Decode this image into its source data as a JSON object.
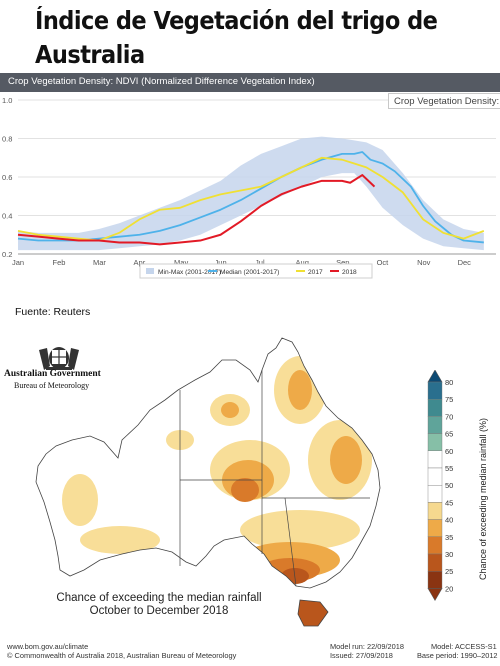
{
  "page": {
    "title": "Índice de Vegetación del trigo de Australia",
    "source_label": "Fuente: Reuters"
  },
  "ndvi_chart": {
    "header": "Crop Vegetation Density: NDVI (Normalized Difference Vegetation Index)",
    "tooltip": "Crop Vegetation Density: N"
  },
  "rain_map": {
    "agency_line1": "Australian Government",
    "agency_line2": "Bureau of Meteorology",
    "map_title_line1": "Chance of exceeding the median rainfall",
    "map_title_line2": "October to December 2018",
    "colorbar_label": "Chance of exceeding median rainfall (%)",
    "colorbar_ticks": [
      "80",
      "75",
      "70",
      "65",
      "60",
      "55",
      "50",
      "45",
      "40",
      "35",
      "30",
      "25",
      "20"
    ],
    "colorbar_colors": [
      "#0d4a73",
      "#2a6f8e",
      "#3f8a8f",
      "#5fa49a",
      "#86bfa7",
      "#ffffff",
      "#ffffff",
      "#ffffff",
      "#f6d98f",
      "#eeaa48",
      "#d97a2a",
      "#b9561c",
      "#8a3412"
    ],
    "footer_url": "www.bom.gov.au/climate",
    "footer_copyright": "© Commonwealth of Australia 2018, Australian Bureau of Meteorology",
    "model_run": "Model run: 22/09/2018",
    "issued": "Issued: 27/09/2018",
    "model": "Model: ACCESS-S1",
    "base_period": "Base period: 1990–2012"
  },
  "chart_data": [
    {
      "type": "line",
      "title": "Crop Vegetation Density: NDVI (Normalized Difference Vegetation Index)",
      "x": [
        "Jan",
        "Feb",
        "Mar",
        "Apr",
        "May",
        "Jun",
        "Jul",
        "Aug",
        "Sep",
        "Oct",
        "Nov",
        "Dec"
      ],
      "ylim": [
        0.2,
        1.0
      ],
      "yticks": [
        "0.2",
        "0.4",
        "0.6",
        "0.8",
        "1.0"
      ],
      "grid": true,
      "legend": "bottom",
      "series": [
        {
          "name": "Min-Max (2001-2017)",
          "kind": "band",
          "color": "#c5d5ec",
          "points": [
            [
              0,
              0.22,
              0.32
            ],
            [
              0.5,
              0.22,
              0.31
            ],
            [
              1,
              0.22,
              0.31
            ],
            [
              1.5,
              0.22,
              0.31
            ],
            [
              2,
              0.22,
              0.33
            ],
            [
              2.5,
              0.23,
              0.36
            ],
            [
              3,
              0.24,
              0.4
            ],
            [
              3.5,
              0.25,
              0.44
            ],
            [
              4,
              0.27,
              0.48
            ],
            [
              4.5,
              0.3,
              0.53
            ],
            [
              5,
              0.35,
              0.58
            ],
            [
              5.5,
              0.4,
              0.66
            ],
            [
              6,
              0.45,
              0.72
            ],
            [
              6.5,
              0.5,
              0.76
            ],
            [
              7,
              0.55,
              0.8
            ],
            [
              7.5,
              0.6,
              0.81
            ],
            [
              8,
              0.62,
              0.8
            ],
            [
              8.3,
              0.62,
              0.79
            ],
            [
              8.6,
              0.55,
              0.78
            ],
            [
              9,
              0.44,
              0.74
            ],
            [
              9.5,
              0.35,
              0.62
            ],
            [
              10,
              0.28,
              0.48
            ],
            [
              10.5,
              0.24,
              0.38
            ],
            [
              11,
              0.23,
              0.33
            ],
            [
              11.5,
              0.22,
              0.31
            ]
          ]
        },
        {
          "name": "Median (2001-2017)",
          "color": "#4eb2ea",
          "points": [
            [
              0,
              0.28
            ],
            [
              0.5,
              0.27
            ],
            [
              1,
              0.27
            ],
            [
              1.5,
              0.27
            ],
            [
              2,
              0.28
            ],
            [
              2.5,
              0.29
            ],
            [
              3,
              0.3
            ],
            [
              3.5,
              0.32
            ],
            [
              4,
              0.35
            ],
            [
              4.5,
              0.39
            ],
            [
              5,
              0.43
            ],
            [
              5.5,
              0.48
            ],
            [
              6,
              0.54
            ],
            [
              6.5,
              0.6
            ],
            [
              7,
              0.65
            ],
            [
              7.5,
              0.69
            ],
            [
              8,
              0.72
            ],
            [
              8.3,
              0.72
            ],
            [
              8.5,
              0.73
            ],
            [
              8.7,
              0.69
            ],
            [
              9,
              0.67
            ],
            [
              9.3,
              0.63
            ],
            [
              9.7,
              0.55
            ],
            [
              10,
              0.45
            ],
            [
              10.3,
              0.37
            ],
            [
              10.7,
              0.3
            ],
            [
              11,
              0.27
            ],
            [
              11.5,
              0.26
            ]
          ]
        },
        {
          "name": "2017",
          "color": "#f0e033",
          "points": [
            [
              0,
              0.32
            ],
            [
              0.5,
              0.3
            ],
            [
              1,
              0.29
            ],
            [
              1.5,
              0.28
            ],
            [
              2,
              0.27
            ],
            [
              2.5,
              0.31
            ],
            [
              3,
              0.38
            ],
            [
              3.5,
              0.43
            ],
            [
              4,
              0.44
            ],
            [
              4.5,
              0.48
            ],
            [
              5,
              0.51
            ],
            [
              5.5,
              0.53
            ],
            [
              6,
              0.55
            ],
            [
              6.5,
              0.6
            ],
            [
              7,
              0.65
            ],
            [
              7.5,
              0.7
            ],
            [
              8,
              0.69
            ],
            [
              8.3,
              0.67
            ],
            [
              8.6,
              0.65
            ],
            [
              9,
              0.6
            ],
            [
              9.5,
              0.52
            ],
            [
              10,
              0.38
            ],
            [
              10.5,
              0.31
            ],
            [
              11,
              0.28
            ],
            [
              11.5,
              0.32
            ]
          ]
        },
        {
          "name": "2018",
          "color": "#e21a26",
          "points": [
            [
              0,
              0.3
            ],
            [
              0.5,
              0.29
            ],
            [
              1,
              0.28
            ],
            [
              1.5,
              0.27
            ],
            [
              2,
              0.27
            ],
            [
              2.5,
              0.26
            ],
            [
              3,
              0.26
            ],
            [
              3.5,
              0.25
            ],
            [
              4,
              0.26
            ],
            [
              4.5,
              0.27
            ],
            [
              5,
              0.3
            ],
            [
              5.5,
              0.37
            ],
            [
              6,
              0.45
            ],
            [
              6.5,
              0.51
            ],
            [
              7,
              0.55
            ],
            [
              7.5,
              0.58
            ],
            [
              8,
              0.58
            ],
            [
              8.2,
              0.57
            ],
            [
              8.5,
              0.61
            ],
            [
              8.8,
              0.55
            ]
          ]
        }
      ]
    },
    {
      "type": "heatmap",
      "title": "Chance of exceeding the median rainfall October to December 2018",
      "colorbar_label": "Chance of exceeding median rainfall (%)",
      "colorbar_range": [
        20,
        80
      ]
    }
  ]
}
